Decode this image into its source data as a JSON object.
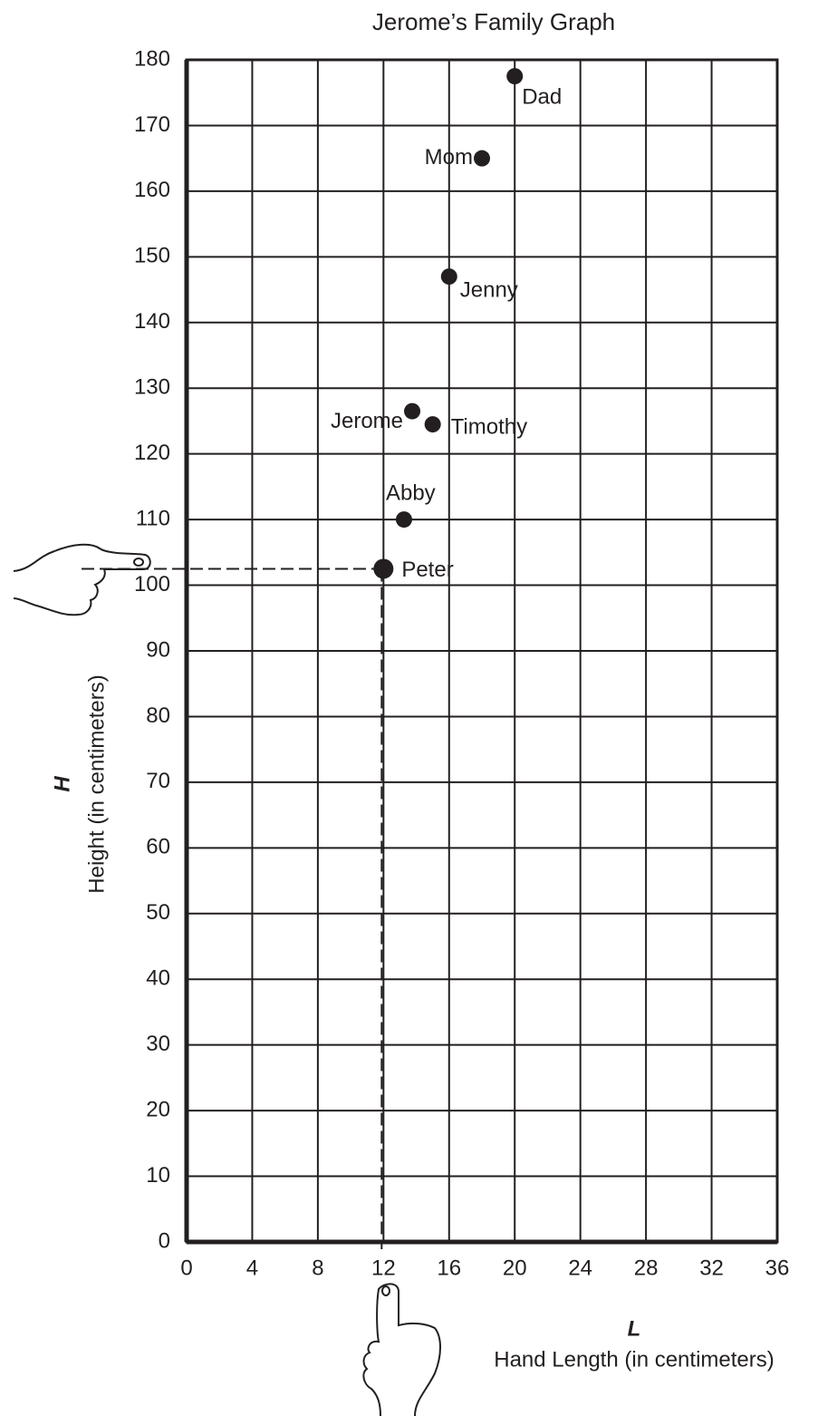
{
  "chart_data": {
    "type": "scatter",
    "title": "Jerome’s Family Graph",
    "x_axis_symbol": "L",
    "x_axis_label": "Hand Length (in centimeters)",
    "y_axis_symbol": "H",
    "y_axis_label": "Height (in centimeters)",
    "labels": [
      "Dad",
      "Mom",
      "Jenny",
      "Jerome",
      "Timothy",
      "Abby",
      "Peter"
    ],
    "x": [
      20,
      18,
      16,
      13.75,
      15,
      13.25,
      12
    ],
    "y": [
      177.5,
      165,
      147,
      126.5,
      124.5,
      110,
      102.5
    ],
    "color": "#231f20",
    "xlim": [
      0,
      36
    ],
    "xticks": [
      0,
      4,
      8,
      12,
      16,
      20,
      24,
      28,
      32,
      36
    ],
    "ylim": [
      0,
      180
    ],
    "yticks": [
      0,
      10,
      20,
      30,
      40,
      50,
      60,
      70,
      80,
      90,
      100,
      110,
      120,
      130,
      140,
      150,
      160,
      170,
      180
    ],
    "grid": true
  }
}
